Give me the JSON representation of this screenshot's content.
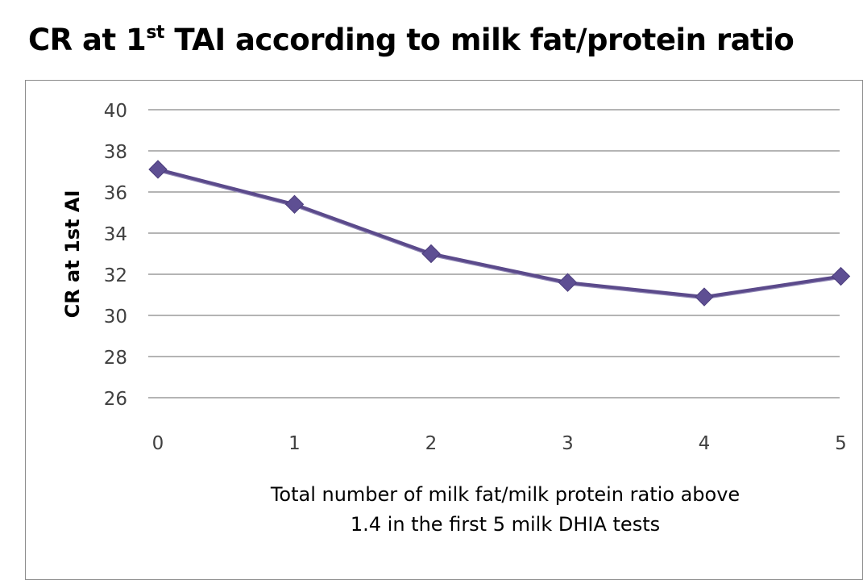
{
  "title": {
    "prefix": "CR at 1",
    "sup": "st",
    "suffix": " TAI according to milk fat/protein ratio"
  },
  "chart_data": {
    "type": "line",
    "x": [
      0,
      1,
      2,
      3,
      4,
      5
    ],
    "x_tick_labels": [
      "0",
      "1",
      "2",
      "3",
      "4",
      "5"
    ],
    "series": [
      {
        "values": [
          37.1,
          35.4,
          33.0,
          31.6,
          30.9,
          31.9
        ]
      }
    ],
    "xlabel_lines": [
      "Total number of milk fat/milk protein ratio above",
      "1.4 in the first 5 milk DHIA tests"
    ],
    "ylabel": "CR at 1st AI",
    "ylim": [
      26,
      40
    ],
    "y_ticks": [
      26,
      28,
      30,
      32,
      34,
      36,
      38,
      40
    ],
    "grid": true,
    "legend": "none",
    "colors": {
      "line": "#5b4a8b",
      "marker": "#5e4f93",
      "grid": "#868686",
      "axis_text": "#404040"
    }
  }
}
